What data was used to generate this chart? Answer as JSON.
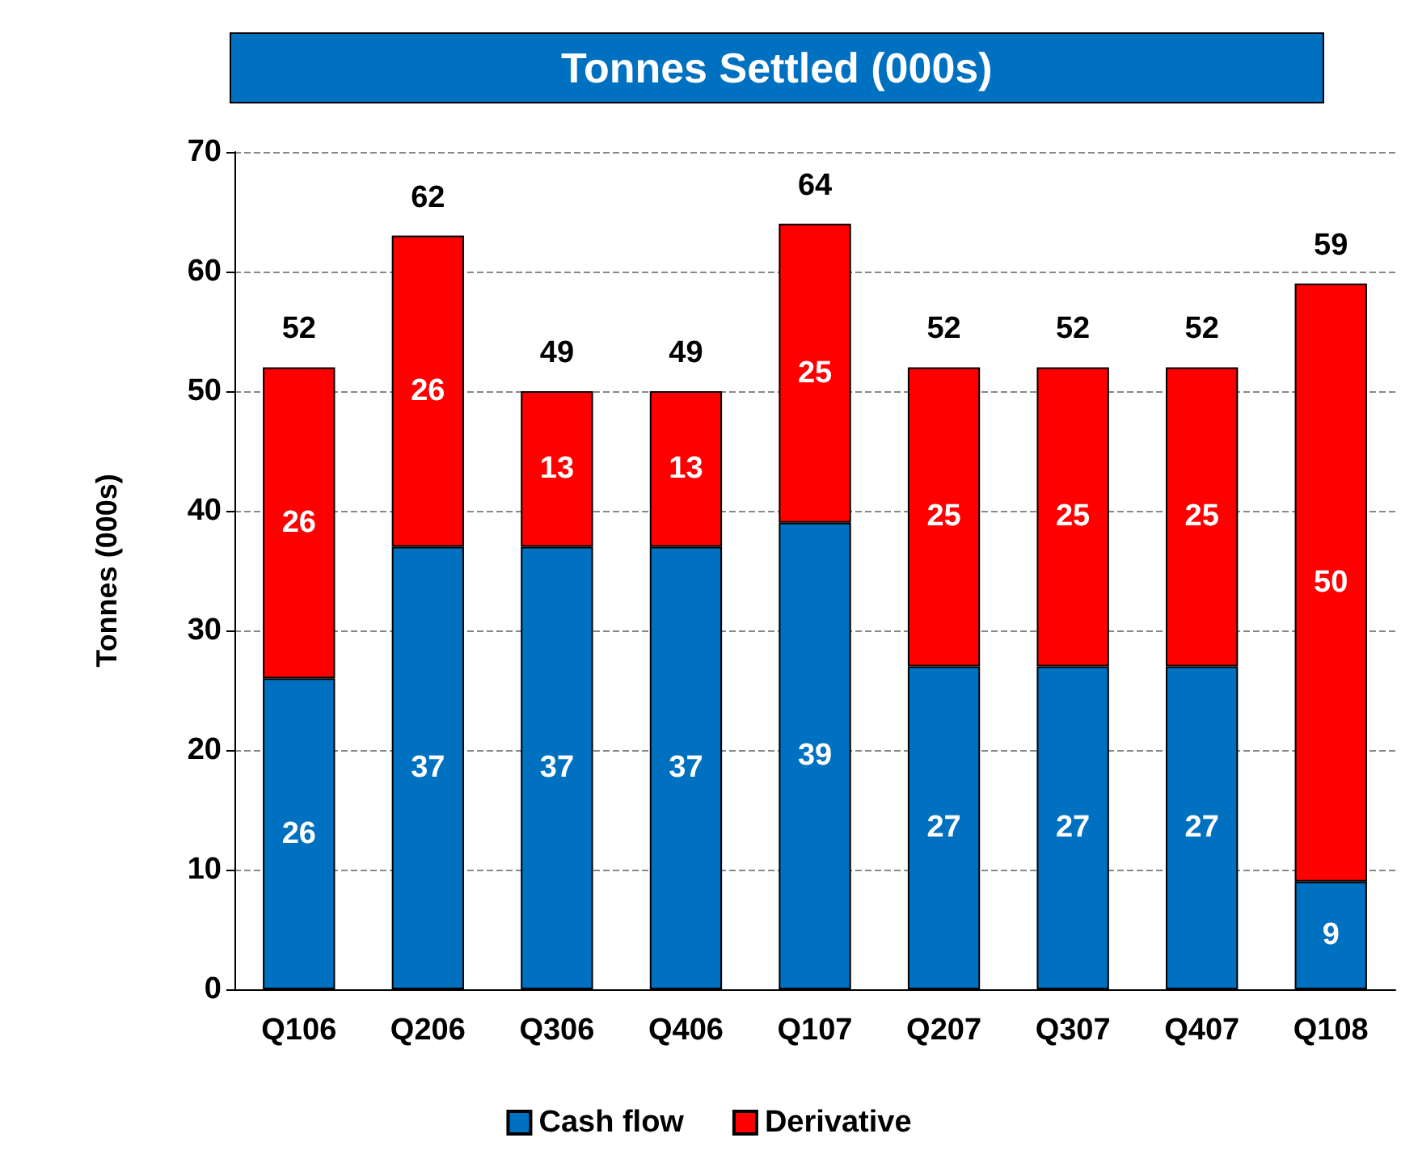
{
  "chart_data": {
    "type": "bar",
    "title": "Tonnes Settled (000s)",
    "ylabel": "Tonnes (000s)",
    "categories": [
      "Q106",
      "Q206",
      "Q306",
      "Q406",
      "Q107",
      "Q207",
      "Q307",
      "Q407",
      "Q108"
    ],
    "series": [
      {
        "name": "Cash flow",
        "color": "#0070c0",
        "values": [
          26,
          37,
          37,
          37,
          39,
          27,
          27,
          27,
          9
        ]
      },
      {
        "name": "Derivative",
        "color": "#ff0000",
        "values": [
          26,
          26,
          13,
          13,
          25,
          25,
          25,
          25,
          50
        ]
      }
    ],
    "stacked": true,
    "data_labels": true,
    "totals": [
      "52",
      "62",
      "49",
      "49",
      "64",
      "52",
      "52",
      "52",
      "59"
    ],
    "ylim": [
      0,
      70
    ],
    "yticks": [
      0,
      10,
      20,
      30,
      40,
      50,
      60,
      70
    ],
    "grid": "y",
    "legend": "bottom"
  }
}
